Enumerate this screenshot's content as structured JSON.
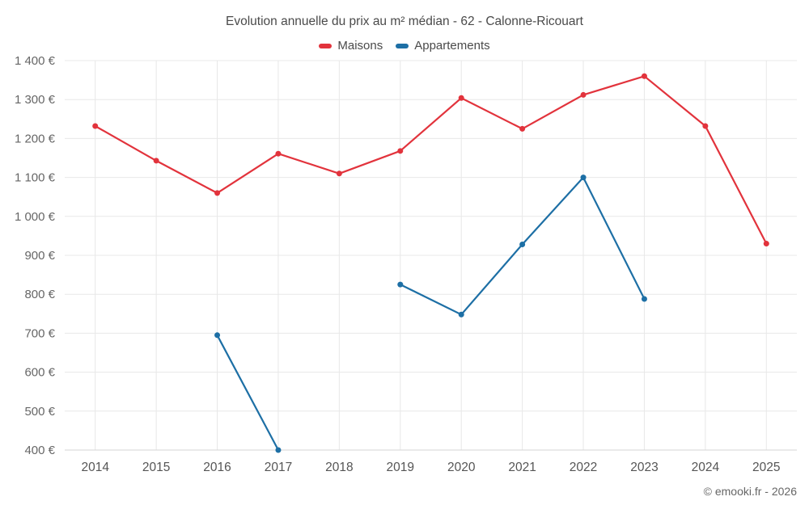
{
  "chart_data": {
    "type": "line",
    "title": "Evolution annuelle du prix au m² médian - 62 - Calonne-Ricouart",
    "categories": [
      "2014",
      "2015",
      "2016",
      "2017",
      "2018",
      "2019",
      "2020",
      "2021",
      "2022",
      "2023",
      "2024",
      "2025"
    ],
    "series": [
      {
        "name": "Maisons",
        "color": "#e2333c",
        "values": [
          1232,
          1143,
          1060,
          1161,
          1110,
          1168,
          1304,
          1225,
          1312,
          1360,
          1232,
          930
        ]
      },
      {
        "name": "Appartements",
        "color": "#1d6fa5",
        "values": [
          null,
          null,
          695,
          400,
          null,
          825,
          748,
          928,
          1100,
          788,
          null,
          null
        ]
      }
    ],
    "ylim": [
      400,
      1400
    ],
    "ytick_step": 100,
    "ytick_labels": [
      "400 €",
      "500 €",
      "600 €",
      "700 €",
      "800 €",
      "900 €",
      "1 000 €",
      "1 100 €",
      "1 200 €",
      "1 300 €",
      "1 400 €"
    ],
    "grid": true,
    "legend_position": "top",
    "xlabel": "",
    "ylabel": ""
  },
  "footer": {
    "text": "© emooki.fr - 2026"
  },
  "colors": {
    "gridline": "#e8e8e8",
    "axis_line": "#d4d4d4",
    "axis_text": "#666666",
    "title_text": "#4a4a4a"
  }
}
